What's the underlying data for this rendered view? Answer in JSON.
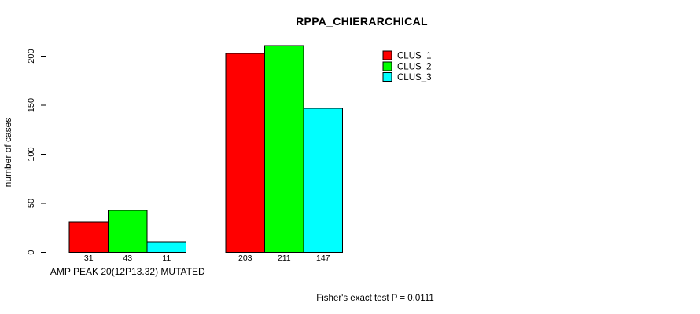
{
  "chart_data": {
    "type": "bar",
    "title": "RPPA_CHIERARCHICAL",
    "ylabel": "number of cases",
    "categories": [
      "AMP PEAK 20(12P13.32) MUTATED",
      ""
    ],
    "series": [
      {
        "name": "CLUS_1",
        "color": "#FF0000",
        "values": [
          31,
          203
        ]
      },
      {
        "name": "CLUS_2",
        "color": "#00FF00",
        "values": [
          43,
          211
        ]
      },
      {
        "name": "CLUS_3",
        "color": "#00FFFF",
        "values": [
          11,
          147
        ]
      }
    ],
    "yticks": [
      0,
      50,
      100,
      150,
      200
    ],
    "ylim": [
      0,
      200
    ],
    "grid": false,
    "bar_value_labels": [
      "31",
      "43",
      "11",
      "203",
      "211",
      "147"
    ],
    "legend_position": "top-right",
    "annotation": "Fisher's exact test P = 0.0111"
  },
  "colors": {
    "background": "#FFFFFF",
    "axis": "#000000",
    "text": "#000000"
  }
}
